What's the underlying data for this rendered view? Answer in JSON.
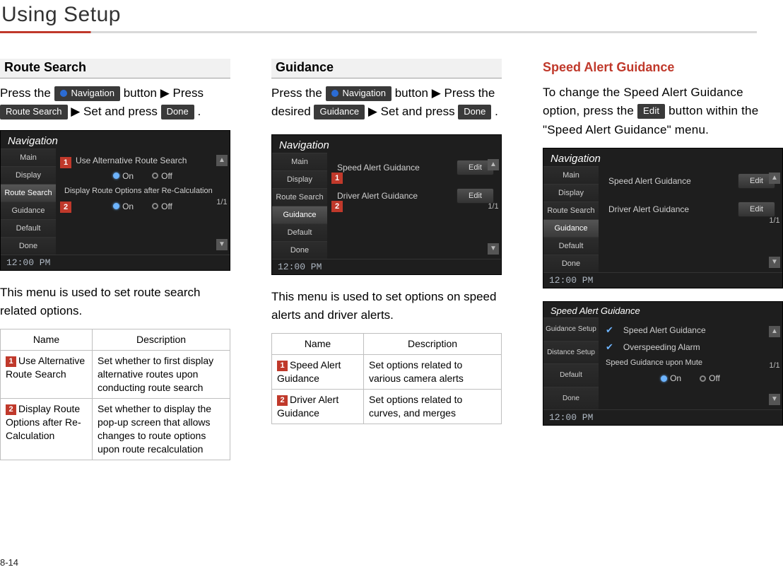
{
  "page": {
    "title": "Using Setup",
    "number": "8-14"
  },
  "colors": {
    "accent": "#c0392b",
    "chip_bg": "#3a3a3a",
    "screenshot_bg": "#1e1e1e"
  },
  "chips": {
    "navigation": "Navigation",
    "route_search": "Route Search",
    "done": "Done",
    "guidance": "Guidance",
    "edit": "Edit"
  },
  "col1": {
    "heading": "Route Search",
    "intro_a": "Press the ",
    "intro_b": " button ▶ Press ",
    "intro_c": " ▶ Set and press ",
    "intro_end": " .",
    "caption": "This menu is used to set route search related options.",
    "table": {
      "h_name": "Name",
      "h_desc": "Description",
      "rows": [
        {
          "n": "1",
          "name": "Use Alternative Route Search",
          "desc": "Set whether to first display alternative routes upon conducting route search"
        },
        {
          "n": "2",
          "name": "Display Route Options after Re-Calculation",
          "desc": "Set whether to display the pop-up screen that allows changes to route options upon route recalculation"
        }
      ]
    },
    "shot": {
      "title": "Navigation",
      "nav": [
        "Main",
        "Display",
        "Route Search",
        "Guidance",
        "Default",
        "Done"
      ],
      "selected": 2,
      "rows": [
        {
          "marker": "1",
          "label": "Use Alternative Route Search",
          "type": "radio",
          "on": "On",
          "off": "Off"
        },
        {
          "marker": "",
          "label": "Display Route Options after Re-Calculation",
          "type": "text"
        },
        {
          "marker": "2",
          "label": "",
          "type": "radio",
          "on": "On",
          "off": "Off"
        }
      ],
      "page": "1/1",
      "clock": "12:00 PM"
    }
  },
  "col2": {
    "heading": "Guidance",
    "intro_a": "Press the ",
    "intro_b": " button ▶ Press the desired ",
    "intro_c": " ▶ Set and press ",
    "intro_end": " .",
    "caption": "This menu is used to set options on speed alerts and driver alerts.",
    "table": {
      "h_name": "Name",
      "h_desc": "Description",
      "rows": [
        {
          "n": "1",
          "name": "Speed Alert Guidance",
          "desc": "Set options related to various camera alerts"
        },
        {
          "n": "2",
          "name": "Driver Alert Guidance",
          "desc": "Set options related to curves, and merges"
        }
      ]
    },
    "shot": {
      "title": "Navigation",
      "nav": [
        "Main",
        "Display",
        "Route Search",
        "Guidance",
        "Default",
        "Done"
      ],
      "selected": 3,
      "rows": [
        {
          "marker": "1",
          "label": "Speed Alert Guidance",
          "btn": "Edit"
        },
        {
          "marker": "2",
          "label": "Driver Alert Guidance",
          "btn": "Edit"
        }
      ],
      "page": "1/1",
      "clock": "12:00 PM"
    }
  },
  "col3": {
    "heading": "Speed Alert Guidance",
    "para_a": "To change the Speed Alert Guidance option, press the ",
    "para_b": " button within the \"Speed Alert Guidance\" menu.",
    "shot1": {
      "title": "Navigation",
      "nav": [
        "Main",
        "Display",
        "Route Search",
        "Guidance",
        "Default",
        "Done"
      ],
      "selected": 3,
      "rows": [
        {
          "label": "Speed Alert Guidance",
          "btn": "Edit"
        },
        {
          "label": "Driver Alert Guidance",
          "btn": "Edit"
        }
      ],
      "page": "1/1",
      "clock": "12:00 PM"
    },
    "shot2": {
      "title": "Speed Alert Guidance",
      "nav": [
        "Guidance Setup",
        "Distance Setup",
        "Default",
        "Done"
      ],
      "rows": [
        {
          "check": true,
          "label": "Speed Alert Guidance"
        },
        {
          "check": true,
          "label": "Overspeeding Alarm"
        },
        {
          "check": false,
          "label": "Speed Guidance upon Mute",
          "radio": true,
          "on": "On",
          "off": "Off"
        }
      ],
      "page": "1/1",
      "clock": "12:00 PM"
    }
  }
}
